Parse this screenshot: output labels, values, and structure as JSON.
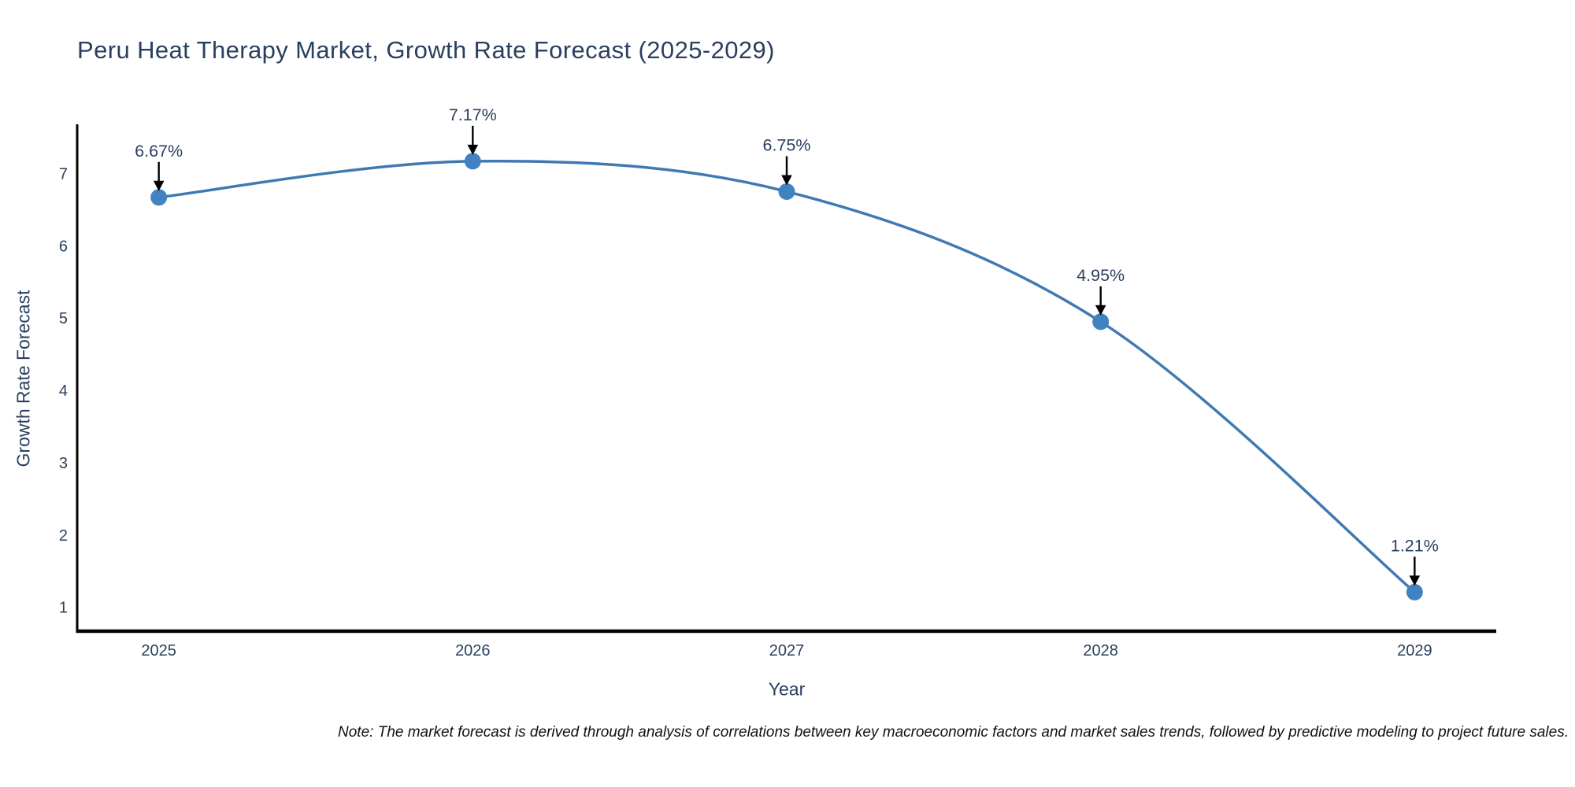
{
  "chart_data": {
    "type": "line",
    "title": "Peru Heat Therapy Market, Growth Rate Forecast (2025-2029)",
    "xlabel": "Year",
    "ylabel": "Growth Rate Forecast",
    "x": [
      2025,
      2026,
      2027,
      2028,
      2029
    ],
    "x_tick_labels": [
      "2025",
      "2026",
      "2027",
      "2028",
      "2029"
    ],
    "series": [
      {
        "name": "Growth Rate Forecast",
        "values": [
          6.67,
          7.17,
          6.75,
          4.95,
          1.21
        ]
      }
    ],
    "point_labels": [
      "6.67%",
      "7.17%",
      "6.75%",
      "4.95%",
      "1.21%"
    ],
    "y_ticks": [
      1,
      2,
      3,
      4,
      5,
      6,
      7
    ],
    "ylim": [
      0.67,
      7.68
    ],
    "xlim": [
      2024.74,
      2029.26
    ],
    "line_shape": "spline",
    "grid": false,
    "legend_position": "none",
    "colors": {
      "line": "#4079b2",
      "marker": "#4182c0",
      "axis_line": "#000000",
      "annotation_arrow": "#000000",
      "text": "#2a3f5f",
      "title": "#2a3f5f",
      "note_text": "#111111",
      "background": "#ffffff"
    }
  },
  "note": "Note: The market forecast is derived through analysis of correlations between key macroeconomic factors and market sales trends, followed by predictive modeling to project future sales."
}
